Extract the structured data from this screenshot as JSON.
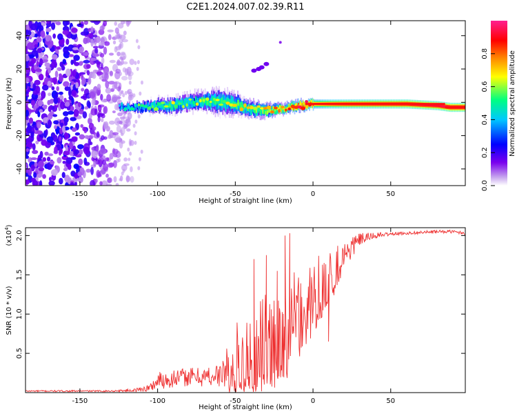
{
  "figure": {
    "title": "C2E1.2024.007.02.39.R11"
  },
  "chart_data": [
    {
      "type": "heatmap",
      "xlabel": "Height of straight line (km)",
      "ylabel": "Frequency (Hz)",
      "xlim": [
        -185,
        98
      ],
      "ylim": [
        -50,
        49
      ],
      "xticks": [
        -150,
        -100,
        -50,
        0,
        50
      ],
      "yticks": [
        -40,
        -20,
        0,
        20,
        40
      ],
      "colorbar": {
        "label": "Normalized spectral amplitude",
        "range": [
          0,
          1
        ],
        "ticks": [
          0.0,
          0.2,
          0.4,
          0.6,
          0.8
        ],
        "colormap": [
          "#ffffff",
          "#c8a8ee",
          "#7a00ee",
          "#0000ff",
          "#00c8ff",
          "#00ff80",
          "#ffff00",
          "#ff8000",
          "#ff0000",
          "#ff2090"
        ]
      },
      "noise_region": {
        "x_range": [
          -185,
          -120
        ],
        "freq_range": [
          -50,
          49
        ],
        "amplitude": [
          0.05,
          0.25
        ]
      },
      "signal_track": {
        "x": [
          -125,
          -110,
          -100,
          -90,
          -80,
          -70,
          -60,
          -50,
          -45,
          -40,
          -30,
          -20,
          -10,
          0,
          10,
          20,
          40,
          60,
          80,
          88,
          98
        ],
        "freq": [
          -3,
          -3,
          -2,
          -2,
          0,
          1,
          0,
          -1,
          -3,
          -4,
          -5,
          -4,
          -2,
          -1,
          -1,
          -1,
          -1,
          -1,
          -2,
          -3,
          -3
        ],
        "bandwidth_hz": [
          3,
          4,
          5,
          5,
          6,
          6,
          8,
          7,
          5,
          5,
          4,
          3,
          3,
          2.5,
          2.5,
          2.5,
          2.5,
          2.5,
          2.5,
          2.5,
          2.5
        ],
        "amplitude": [
          0.35,
          0.4,
          0.45,
          0.5,
          0.45,
          0.5,
          0.5,
          0.5,
          0.55,
          0.55,
          0.6,
          0.65,
          0.75,
          0.8,
          0.85,
          0.88,
          0.9,
          0.92,
          0.92,
          0.95,
          0.95
        ]
      },
      "secondary_streak": {
        "x": [
          -38,
          -35,
          -33,
          -30
        ],
        "freq": [
          19,
          20,
          21,
          23
        ],
        "amplitude": 0.15
      }
    },
    {
      "type": "line",
      "xlabel": "Height of straight line (km)",
      "ylabel": "SNR (10 * v/v)",
      "yscale_label": "(x10",
      "yscale_exp": "4",
      "yscale_close": ")",
      "xlim": [
        -185,
        98
      ],
      "ylim": [
        0,
        2.1
      ],
      "xticks": [
        -150,
        -100,
        -50,
        0,
        50
      ],
      "yticks": [
        0.5,
        1.0,
        1.5,
        2.0
      ],
      "ytick_labels": [
        "0.5",
        "1.0",
        "1.5",
        "2.0"
      ],
      "color": "#ee3030",
      "series": [
        {
          "name": "SNR (x10^4)",
          "envelope_x": [
            -185,
            -130,
            -115,
            -105,
            -100,
            -90,
            -80,
            -70,
            -60,
            -55,
            -50,
            -45,
            -40,
            -35,
            -30,
            -25,
            -20,
            -15,
            -10,
            -5,
            0,
            5,
            10,
            15,
            20,
            25,
            30,
            40,
            50,
            60,
            70,
            80,
            90,
            98
          ],
          "envelope_mean": [
            0.02,
            0.02,
            0.03,
            0.06,
            0.15,
            0.18,
            0.2,
            0.2,
            0.22,
            0.3,
            0.45,
            0.5,
            0.55,
            0.6,
            0.65,
            0.7,
            0.8,
            0.85,
            0.95,
            1.05,
            1.2,
            1.35,
            1.5,
            1.6,
            1.75,
            1.85,
            1.95,
            2.0,
            2.02,
            2.03,
            2.04,
            2.05,
            2.05,
            2.03
          ],
          "envelope_spread": [
            0.01,
            0.01,
            0.02,
            0.05,
            0.12,
            0.12,
            0.12,
            0.13,
            0.15,
            0.3,
            0.45,
            0.5,
            0.55,
            0.6,
            0.65,
            0.65,
            0.7,
            0.7,
            0.6,
            0.5,
            0.45,
            0.45,
            0.4,
            0.3,
            0.2,
            0.15,
            0.08,
            0.04,
            0.02,
            0.02,
            0.02,
            0.02,
            0.02,
            0.02
          ],
          "spikes": [
            {
              "x": -38,
              "y": 1.7
            },
            {
              "x": -30,
              "y": 1.75
            },
            {
              "x": -23,
              "y": 1.55
            },
            {
              "x": -18,
              "y": 2.0
            },
            {
              "x": -15,
              "y": 2.03
            },
            {
              "x": 10,
              "y": 0.65
            }
          ]
        }
      ]
    }
  ]
}
